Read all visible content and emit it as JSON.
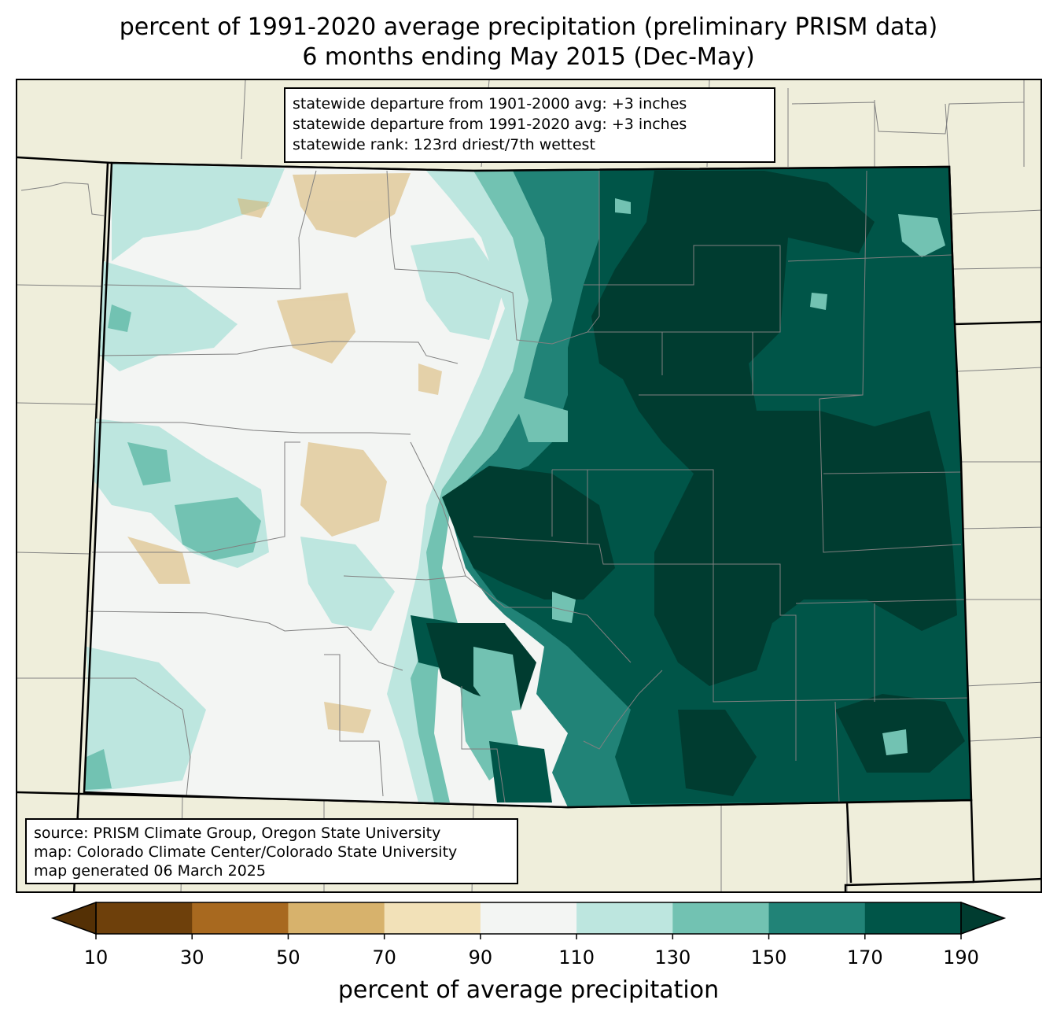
{
  "title_line1": "percent of 1991-2020 average precipitation (preliminary PRISM data)",
  "title_line2": "6 months ending May 2015 (Dec-May)",
  "stats": [
    "statewide departure from 1901-2000 avg: +3 inches",
    "statewide departure from 1991-2020 avg: +3 inches",
    "statewide rank: 123rd driest/7th wettest"
  ],
  "credits": [
    "source: PRISM Climate Group, Oregon State University",
    "map: Colorado Climate Center/Colorado State University",
    "map generated 06 March 2025"
  ],
  "colorbar": {
    "label": "percent of average precipitation",
    "ticks": [
      "10",
      "30",
      "50",
      "70",
      "90",
      "110",
      "130",
      "150",
      "170",
      "190"
    ],
    "extend_low_color": "#543005",
    "extend_high_color": "#003c30",
    "colors": [
      "#6e400b",
      "#a8691f",
      "#d7b26c",
      "#f2e1b8",
      "#f3f5f3",
      "#bde6df",
      "#72c2b2",
      "#218377",
      "#005548"
    ]
  },
  "map_colors": {
    "land_background": "#efeedb",
    "boundary": "#000000",
    "county_lines": "#808080"
  }
}
